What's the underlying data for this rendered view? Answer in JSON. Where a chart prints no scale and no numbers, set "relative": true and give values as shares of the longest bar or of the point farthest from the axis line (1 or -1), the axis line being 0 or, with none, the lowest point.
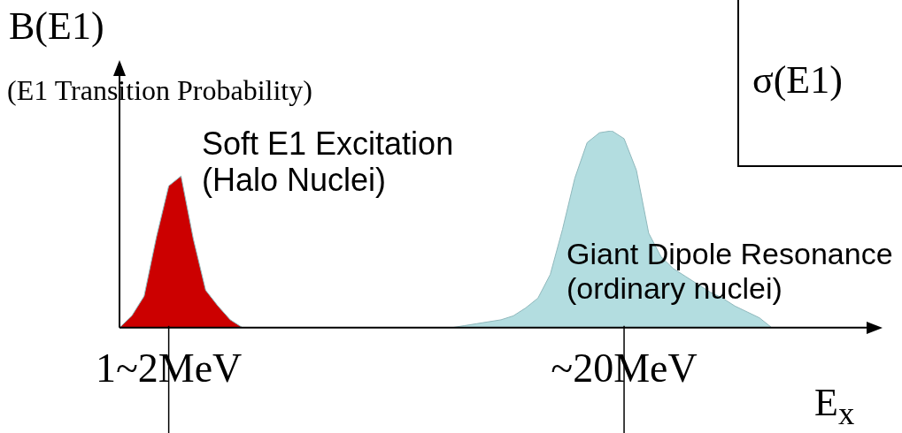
{
  "chart_data": {
    "type": "area",
    "relative": true,
    "ylabel": "B(E1)",
    "xlabel": "E$_{x}$",
    "annotations": [
      "(E1 Transition Probability)",
      "Soft E1 Excitation\n(Halo Nuclei)",
      "Giant Dipole Resonance\n(ordinary nuclei)",
      "σ(E1)"
    ],
    "categories": [
      null,
      null,
      null,
      null,
      "1~2MeV",
      null,
      null,
      null,
      null,
      null,
      null,
      null,
      null,
      null,
      null,
      null,
      null,
      null,
      null,
      null,
      null,
      null,
      null,
      null,
      null,
      null,
      null,
      null,
      null,
      null,
      null,
      null,
      null,
      null,
      null,
      null,
      null,
      null,
      null,
      null,
      null,
      "~20MeV",
      null,
      null,
      null,
      null,
      null,
      null,
      null,
      null,
      null,
      null,
      null,
      null,
      null,
      null,
      null,
      null,
      null,
      null,
      null,
      null,
      null
    ],
    "grid": false,
    "legend": false,
    "series": [
      {
        "color": "#cc0000",
        "values": [
          0,
          0.06,
          0.16,
          0.46,
          0.72,
          0.77,
          0.45,
          0.19,
          0.11,
          0.04,
          0,
          null,
          null,
          null,
          null,
          null,
          null,
          null,
          null,
          null,
          null,
          null,
          null,
          null,
          null,
          null,
          null,
          null,
          null,
          null,
          null,
          null,
          null,
          null,
          null,
          null,
          null,
          null,
          null,
          null,
          null,
          null,
          null,
          null,
          null,
          null,
          null,
          null,
          null,
          null,
          null,
          null,
          null,
          null,
          null,
          null,
          null,
          null,
          null,
          null,
          null,
          null,
          null
        ]
      },
      {
        "color": "#b3dde0",
        "values": [
          null,
          null,
          null,
          null,
          null,
          null,
          null,
          null,
          null,
          null,
          null,
          null,
          null,
          null,
          null,
          null,
          null,
          null,
          null,
          null,
          null,
          null,
          null,
          null,
          null,
          null,
          null,
          0,
          0.01,
          0.02,
          0.03,
          0.04,
          0.06,
          0.1,
          0.15,
          0.27,
          0.5,
          0.76,
          0.94,
          0.99,
          1.0,
          0.96,
          0.8,
          0.48,
          0.36,
          0.3,
          0.26,
          0.22,
          0.18,
          0.15,
          0.11,
          0.08,
          0.05,
          0,
          null,
          null,
          null,
          null,
          null,
          null,
          null,
          null,
          null
        ]
      }
    ]
  }
}
